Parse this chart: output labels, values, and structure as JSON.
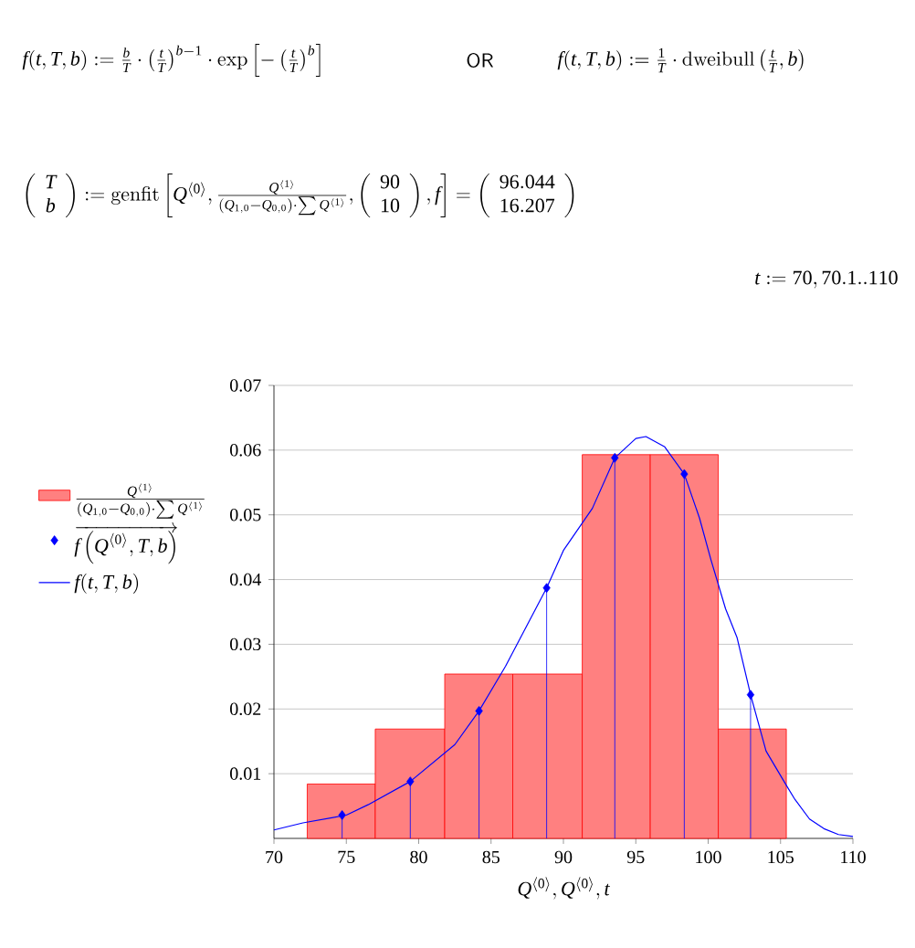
{
  "chart_data": {
    "type": "histogram",
    "annotations": [
      "f(t,T,b) := \\frac{b}{T}\\cdot\\left(\\frac{t}{T}\\right)^{b-1}\\cdot\\exp\\left[-\\left(\\frac{t}{T}\\right)^{b}\\right]",
      "\\mathsf{OR}",
      "f(t,T,b) := \\frac{1}{T}\\cdot\\mathrm{dweibull}\\left(\\frac{t}{T},b\\right)",
      "\\left(\\begin{array}{c}T\\\\ b\\end{array}\\right) := \\mathrm{genfit}\\left[Q^{\\langle 0\\rangle},\\frac{Q^{\\langle 1\\rangle}}{\\left(Q_{1,0}-Q_{0,0}\\right)\\cdot\\sum Q^{\\langle 1\\rangle}},\\left(\\begin{array}{c}90\\\\ 10\\end{array}\\right),f\\right] = \\left(\\begin{array}{c}96.044\\\\ 16.207\\end{array}\\right)",
      "t := 70, 70.1 .. 110"
    ],
    "xlabel": "Q^{\\langle 0\\rangle}, Q^{\\langle 0\\rangle}, t",
    "xlim": [
      70,
      110
    ],
    "xticks": [
      70,
      75,
      80,
      85,
      90,
      95,
      100,
      105,
      110
    ],
    "ylim": [
      0,
      0.07
    ],
    "yticks": [
      0.01,
      0.02,
      0.03,
      0.04,
      0.05,
      0.06,
      0.07
    ],
    "grid": "y",
    "legend": "left",
    "series": [
      {
        "name": "\\frac{Q^{\\langle 1\\rangle}}{\\left(Q_{1,0}-Q_{0,0}\\right)\\cdot\\sum Q^{\\langle 1\\rangle}}",
        "color": "#ff8080",
        "bins": [
          72.3,
          77.0,
          81.8,
          86.5,
          91.3,
          96.0,
          100.7,
          105.4
        ],
        "values": [
          0.0084,
          0.0169,
          0.0254,
          0.0254,
          0.0593,
          0.0593,
          0.0169
        ]
      },
      {
        "name": "\\overrightarrow{f\\left(Q^{\\langle 0\\rangle},T,b\\right)}",
        "type": "lollipop",
        "color": "#0000ff",
        "marker": "diamond",
        "x": [
          74.71,
          79.42,
          84.17,
          88.84,
          93.55,
          98.35,
          102.93
        ],
        "values": [
          0.0036,
          0.0088,
          0.0197,
          0.0387,
          0.0588,
          0.0563,
          0.0222
        ]
      },
      {
        "name": "f(t,T,b)",
        "type": "line",
        "color": "#0000ff",
        "x": [
          70,
          72,
          74,
          75,
          76.5,
          79.42,
          82.5,
          84.17,
          86,
          88.84,
          90,
          92,
          93.55,
          95,
          95.7,
          97,
          98.35,
          99.4,
          100.2,
          101.2,
          102,
          102.93,
          104,
          105.4,
          106,
          107,
          108,
          109,
          110
        ],
        "values": [
          0.0013,
          0.0024,
          0.0032,
          0.0036,
          0.0052,
          0.0088,
          0.0145,
          0.0197,
          0.0266,
          0.0387,
          0.0445,
          0.051,
          0.0588,
          0.0618,
          0.0621,
          0.0605,
          0.0563,
          0.0495,
          0.043,
          0.0355,
          0.031,
          0.0222,
          0.0135,
          0.0082,
          0.006,
          0.003,
          0.0015,
          0.0006,
          0.0003
        ]
      }
    ]
  }
}
